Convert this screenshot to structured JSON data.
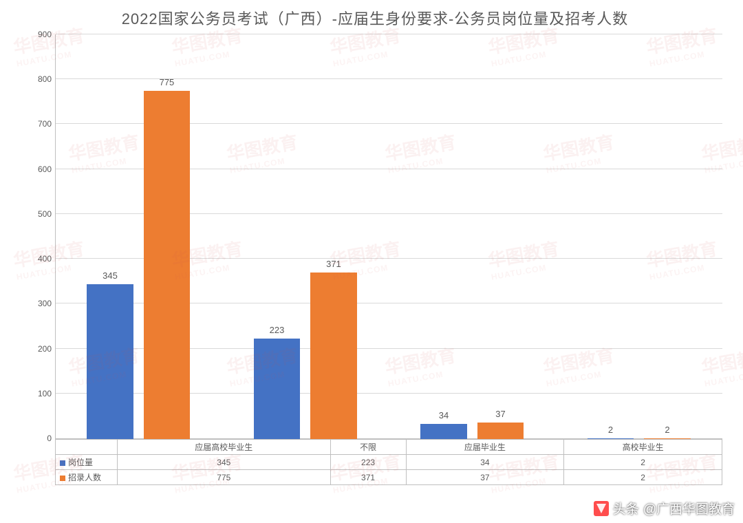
{
  "chart": {
    "type": "bar",
    "title": "2022国家公务员考试（广西）-应届生身份要求-公务员岗位量及招考人数",
    "title_fontsize": 22,
    "title_color": "#595959",
    "background_color": "#ffffff",
    "grid_color": "#d9d9d9",
    "axis_color": "#bfbfbf",
    "label_fontsize": 12,
    "label_color": "#595959",
    "ylim": [
      0,
      900
    ],
    "ytick_step": 100,
    "yticks": [
      0,
      100,
      200,
      300,
      400,
      500,
      600,
      700,
      800,
      900
    ],
    "categories": [
      "应届高校毕业生",
      "不限",
      "应届毕业生",
      "高校毕业生"
    ],
    "series": [
      {
        "name": "岗位量",
        "color": "#4472c4",
        "values": [
          345,
          223,
          34,
          2
        ]
      },
      {
        "name": "招录人数",
        "color": "#ed7d31",
        "values": [
          775,
          371,
          37,
          2
        ]
      }
    ],
    "bar_width_pct": 28,
    "bar_gap_pct": 6,
    "bar_label_fontsize": 13
  },
  "watermark": {
    "text_main": "华图教育",
    "text_sub": "HUATU.COM",
    "color": "rgba(210,80,80,0.08)",
    "fontsize_main": 26,
    "fontsize_sub": 12,
    "rows": 5,
    "cols": 5,
    "h_spacing": 230,
    "v_spacing": 155,
    "rotate_deg": -10
  },
  "attribution": {
    "prefix": "头条",
    "text": "@广西华图教育",
    "fontsize": 19,
    "color": "#ffffff"
  }
}
